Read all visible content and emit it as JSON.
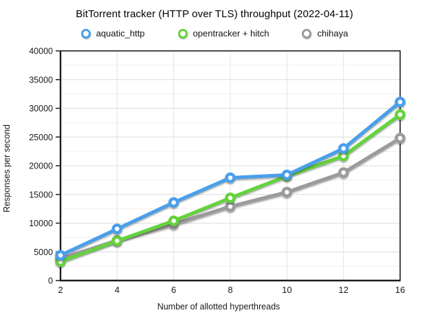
{
  "title": "BitTorrent tracker (HTTP over TLS) throughput (2022-04-11)",
  "chart_data": {
    "type": "line",
    "title": "BitTorrent tracker (HTTP over TLS) throughput (2022-04-11)",
    "categories": [
      2,
      4,
      6,
      8,
      10,
      12,
      16
    ],
    "series": [
      {
        "name": "aquatic_http",
        "color": "#4A9FEC",
        "values": [
          4400,
          9000,
          13600,
          17900,
          18400,
          23000,
          31100
        ]
      },
      {
        "name": "opentracker + hitch",
        "color": "#64D33C",
        "values": [
          3300,
          6900,
          10400,
          14400,
          18200,
          21700,
          28900
        ]
      },
      {
        "name": "chihaya",
        "color": "#9B9B9B",
        "values": [
          3800,
          7000,
          9800,
          12900,
          15400,
          18800,
          24800
        ]
      }
    ],
    "xlabel": "Number of allotted hyperthreads",
    "ylabel": "Responses per second",
    "ylim": [
      0,
      40000
    ],
    "y_major_step": 5000,
    "y_minor_step": 2500,
    "x_tick_labels": [
      "2",
      "4",
      "6",
      "8",
      "10",
      "12",
      "16"
    ],
    "y_tick_labels": [
      "0",
      "5000",
      "10000",
      "15000",
      "20000",
      "25000",
      "30000",
      "35000",
      "40000"
    ],
    "legend_position": "top",
    "grid": true,
    "colors": {
      "axis_frame": "#1c1c1c",
      "major_gridline": "#dcdcdc",
      "minor_gridline": "#efefef",
      "vertical_gridline": "#e4e4e4",
      "tick_label": "#1a1a1a"
    }
  }
}
